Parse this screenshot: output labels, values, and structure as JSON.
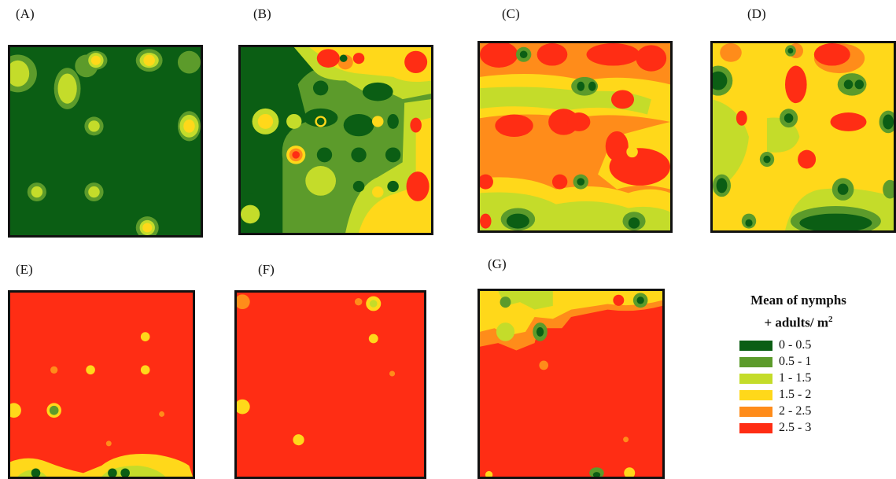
{
  "panels": [
    {
      "id": "A",
      "label": "(A)"
    },
    {
      "id": "B",
      "label": "(B)"
    },
    {
      "id": "C",
      "label": "(C)"
    },
    {
      "id": "D",
      "label": "(D)"
    },
    {
      "id": "E",
      "label": "(E)"
    },
    {
      "id": "F",
      "label": "(F)"
    },
    {
      "id": "G",
      "label": "(G)"
    }
  ],
  "legend": {
    "title_line1": "Mean of nymphs",
    "title_line2": "+ adults/ m",
    "title_superscript": "2",
    "classes": [
      {
        "range": "0 - 0.5",
        "color": "#0b5e14"
      },
      {
        "range": "0.5 - 1",
        "color": "#5c9b2b"
      },
      {
        "range": "1 - 1.5",
        "color": "#c4dc2a"
      },
      {
        "range": "1.5 - 2",
        "color": "#ffd81a"
      },
      {
        "range": "2 - 2.5",
        "color": "#ff8c1a"
      },
      {
        "range": "2.5 - 3",
        "color": "#ff2d14"
      }
    ]
  }
}
